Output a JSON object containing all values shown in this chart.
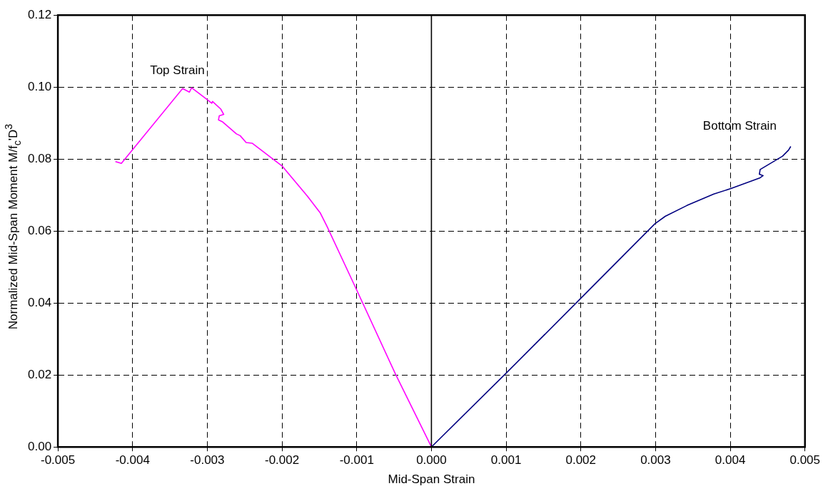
{
  "chart_data": {
    "type": "line",
    "xlabel": "Mid-Span Strain",
    "ylabel": "Normalized Mid-Span Moment M/f$_{c}$'D$^{3}$",
    "xlim": [
      -0.005,
      0.005
    ],
    "ylim": [
      0,
      0.12
    ],
    "xticks": [
      {
        "value": -0.005,
        "label": "-0.005"
      },
      {
        "value": -0.004,
        "label": "-0.004"
      },
      {
        "value": -0.003,
        "label": "-0.003"
      },
      {
        "value": -0.002,
        "label": "-0.002"
      },
      {
        "value": -0.001,
        "label": "-0.001"
      },
      {
        "value": 0,
        "label": "0.000"
      },
      {
        "value": 0.001,
        "label": "0.001"
      },
      {
        "value": 0.002,
        "label": "0.002"
      },
      {
        "value": 0.003,
        "label": "0.003"
      },
      {
        "value": 0.004,
        "label": "0.004"
      },
      {
        "value": 0.005,
        "label": "0.005"
      }
    ],
    "yticks": [
      {
        "value": 0,
        "label": "0.00"
      },
      {
        "value": 0.02,
        "label": "0.02"
      },
      {
        "value": 0.04,
        "label": "0.04"
      },
      {
        "value": 0.06,
        "label": "0.06"
      },
      {
        "value": 0.08,
        "label": "0.08"
      },
      {
        "value": 0.1,
        "label": "0.10"
      },
      {
        "value": 0.12,
        "label": "0.12"
      }
    ],
    "grid": true,
    "legend": false,
    "marker": "none",
    "line_style": "solid",
    "ref_lines": [
      {
        "axis": "x",
        "value": 0,
        "color": "#000000"
      }
    ],
    "series": [
      {
        "name": "Top Strain",
        "color": "#ff00ff",
        "x": [
          -0.00423,
          -0.00415,
          -0.00333,
          -0.00324,
          -0.00321,
          -0.003,
          -0.00294,
          -0.00293,
          -0.00282,
          -0.00278,
          -0.00284,
          -0.00285,
          -0.0028,
          -0.00261,
          -0.00256,
          -0.00248,
          -0.0024,
          -0.002,
          -0.00166,
          -0.00149,
          -0.0014,
          -0.001,
          -0.00048,
          0
        ],
        "values": [
          0.0793,
          0.0788,
          0.0996,
          0.0986,
          0.0998,
          0.0965,
          0.0955,
          0.096,
          0.0939,
          0.0924,
          0.092,
          0.0909,
          0.0904,
          0.087,
          0.0865,
          0.0846,
          0.0844,
          0.0781,
          0.0697,
          0.0651,
          0.0614,
          0.0436,
          0.0202,
          0
        ]
      },
      {
        "name": "Bottom Strain",
        "color": "#000080",
        "x": [
          0,
          0.001,
          0.00198,
          0.00299,
          0.00313,
          0.00342,
          0.00378,
          0.00401,
          0.0044,
          0.00444,
          0.00439,
          0.0044,
          0.0047,
          0.00478,
          0.00481
        ],
        "values": [
          0,
          0.0205,
          0.0409,
          0.062,
          0.0641,
          0.0671,
          0.0703,
          0.0718,
          0.0748,
          0.0754,
          0.0758,
          0.0771,
          0.0808,
          0.0825,
          0.0835
        ]
      }
    ]
  }
}
